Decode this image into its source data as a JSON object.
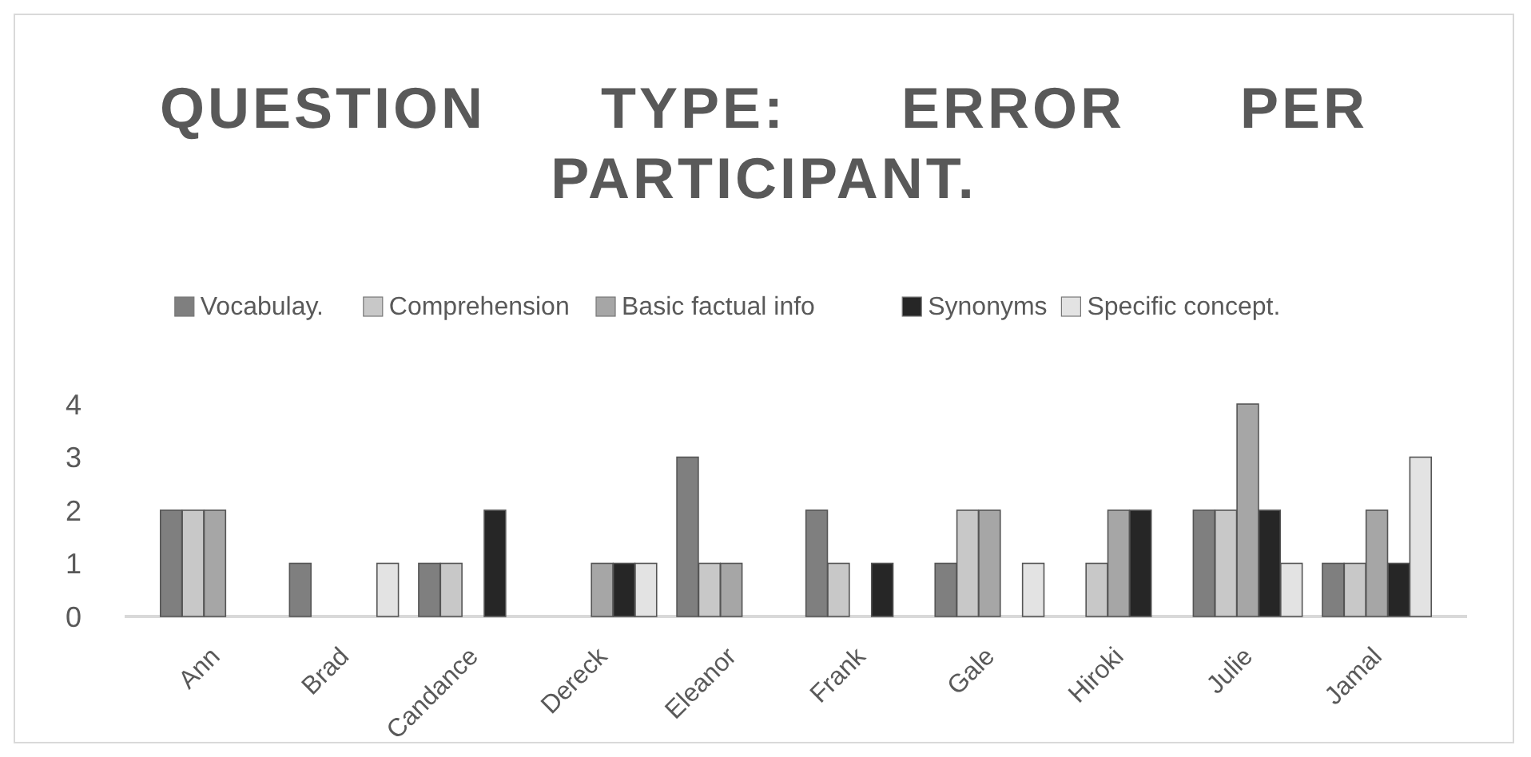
{
  "chart_data": {
    "type": "bar",
    "title": "QUESTION TYPE: ERROR PER PARTICIPANT.",
    "categories": [
      "Ann",
      "Brad",
      "Candance",
      "Dereck",
      "Eleanor",
      "Frank",
      "Gale",
      "Hiroki",
      "Julie",
      "Jamal"
    ],
    "series": [
      {
        "name": "Vocabulay.",
        "color": "#7f7f7f",
        "values": [
          2,
          1,
          1,
          0,
          3,
          2,
          1,
          0,
          2,
          1
        ]
      },
      {
        "name": "Comprehension",
        "color": "#c8c8c8",
        "values": [
          2,
          0,
          1,
          0,
          1,
          1,
          2,
          1,
          2,
          1
        ]
      },
      {
        "name": "Basic factual info",
        "color": "#a6a6a6",
        "values": [
          2,
          0,
          0,
          1,
          1,
          0,
          2,
          2,
          4,
          2
        ]
      },
      {
        "name": "Synonyms",
        "color": "#262626",
        "values": [
          0,
          0,
          2,
          1,
          0,
          1,
          0,
          2,
          2,
          1
        ]
      },
      {
        "name": "Specific concept.",
        "color": "#e3e3e3",
        "values": [
          0,
          1,
          0,
          1,
          0,
          0,
          1,
          0,
          1,
          3
        ]
      }
    ],
    "ylim": [
      0,
      4
    ],
    "yticks": [
      0,
      1,
      2,
      3,
      4
    ],
    "grid": false,
    "legend": "top"
  }
}
